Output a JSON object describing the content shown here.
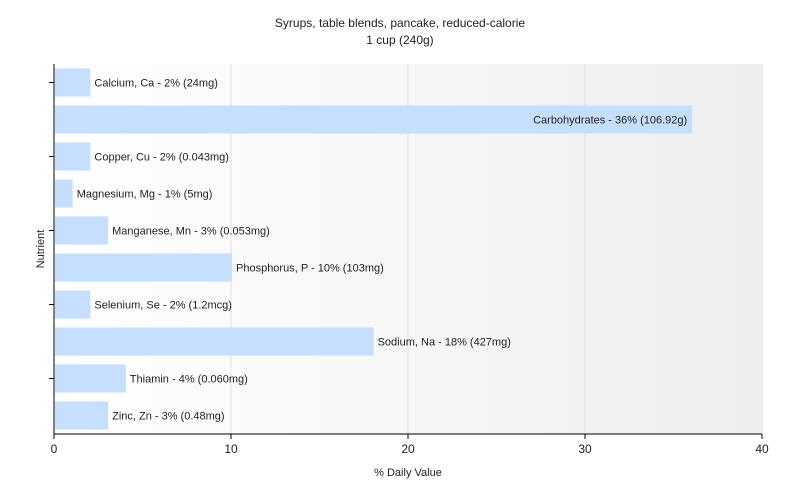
{
  "chart_data": {
    "type": "bar",
    "orientation": "horizontal",
    "title": "Syrups, table blends, pancake, reduced-calorie",
    "subtitle": "1 cup (240g)",
    "xlabel": "% Daily Value",
    "ylabel": "Nutrient",
    "xlim": [
      0,
      40
    ],
    "xticks": [
      0,
      10,
      20,
      30,
      40
    ],
    "grid": "vertical",
    "bar_color": "#c6dfff",
    "categories": [
      "Calcium, Ca",
      "Carbohydrates",
      "Copper, Cu",
      "Magnesium, Mg",
      "Manganese, Mn",
      "Phosphorus, P",
      "Selenium, Se",
      "Sodium, Na",
      "Thiamin",
      "Zinc, Zn"
    ],
    "values": [
      2,
      36,
      2,
      1,
      3,
      10,
      2,
      18,
      4,
      3
    ],
    "labels": [
      "Calcium, Ca - 2% (24mg)",
      "Carbohydrates - 36% (106.92g)",
      "Copper, Cu - 2% (0.043mg)",
      "Magnesium, Mg - 1% (5mg)",
      "Manganese, Mn - 3% (0.053mg)",
      "Phosphorus, P - 10% (103mg)",
      "Selenium, Se - 2% (1.2mcg)",
      "Sodium, Na - 18% (427mg)",
      "Thiamin - 4% (0.060mg)",
      "Zinc, Zn - 3% (0.48mg)"
    ]
  }
}
